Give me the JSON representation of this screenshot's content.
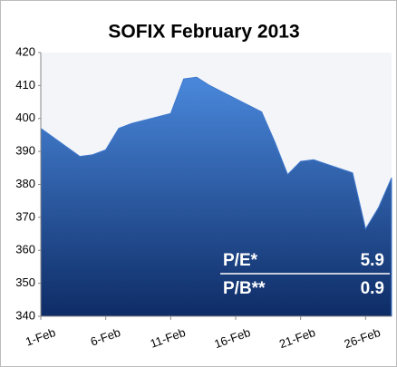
{
  "chart_data": {
    "type": "area",
    "title": "SOFIX February 2013",
    "x": [
      1,
      4,
      5,
      6,
      7,
      8,
      11,
      12,
      13,
      14,
      15,
      18,
      19,
      20,
      21,
      22,
      25,
      26,
      27,
      28
    ],
    "values": [
      397,
      388.5,
      389,
      390.5,
      397,
      398.5,
      401.5,
      412,
      412.5,
      410,
      408,
      402,
      393,
      383,
      387,
      387.5,
      383.5,
      366.5,
      373,
      382
    ],
    "color": "#3f78cc",
    "xlim": [
      1,
      28
    ],
    "xticks": [
      {
        "value": 1,
        "label": "1-Feb"
      },
      {
        "value": 6,
        "label": "6-Feb"
      },
      {
        "value": 11,
        "label": "11-Feb"
      },
      {
        "value": 16,
        "label": "16-Feb"
      },
      {
        "value": 21,
        "label": "21-Feb"
      },
      {
        "value": 26,
        "label": "26-Feb"
      }
    ],
    "ylim": [
      340,
      420
    ],
    "yticks": [
      340,
      350,
      360,
      370,
      380,
      390,
      400,
      410,
      420
    ],
    "annotations": [
      {
        "label": "P/E*",
        "value": 5.9
      },
      {
        "label": "P/B**",
        "value": 0.9
      }
    ]
  }
}
